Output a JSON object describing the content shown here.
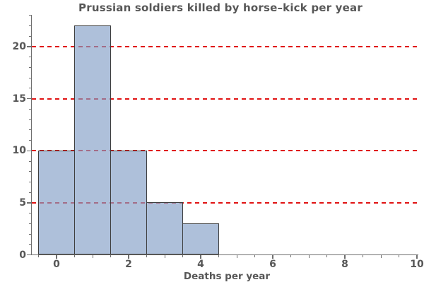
{
  "chart_data": {
    "type": "bar",
    "subtype": "histogram",
    "title": "Prussian soldiers killed by horse–kick per year",
    "xlabel": "Deaths per year",
    "ylabel": "",
    "categories": [
      0,
      1,
      2,
      3,
      4
    ],
    "values": [
      10,
      22,
      10,
      5,
      3
    ],
    "bin_width": 1,
    "xlim": [
      -0.7,
      10.05
    ],
    "ylim": [
      0,
      23.1
    ],
    "x_major_ticks": [
      0,
      2,
      4,
      6,
      8,
      10
    ],
    "x_minor_tick_step": 0.5,
    "y_major_ticks": [
      0,
      5,
      10,
      15,
      20
    ],
    "y_minor_tick_step": 1,
    "gridlines_y": [
      5,
      10,
      15,
      20
    ],
    "gridline_style": "dashed",
    "grid": "horizontal only",
    "legend": null,
    "colors": {
      "bar_fill": "rgba(130,158,198,0.65)",
      "bar_fill_flat": "#aec0da",
      "bar_edge": "#3d3d3d",
      "gridline": "#e01212",
      "axis": "#6e6e6e",
      "text": "#575757",
      "background": "#ffffff"
    }
  }
}
